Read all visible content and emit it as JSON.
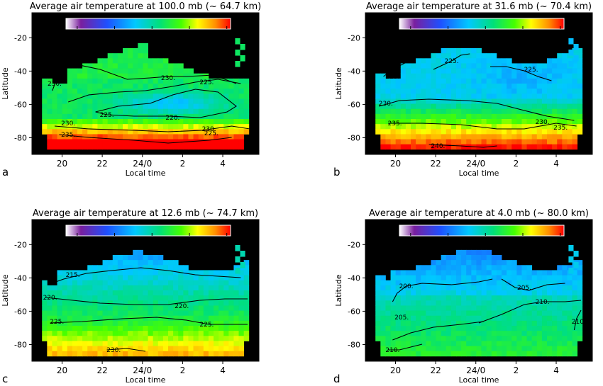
{
  "colors": {
    "background_plot": "#000000",
    "contour": "#000000",
    "colorbar": [
      "#ffffff",
      "#7a1f9e",
      "#1e50ff",
      "#00c8ff",
      "#00e07a",
      "#46ff00",
      "#ffff00",
      "#ff8c00",
      "#ff0000"
    ]
  },
  "chart_data": [
    {
      "panel_letter": "a",
      "type": "heatmap",
      "title": "Average air temperature at 100.0 mb (~ 64.7 km)",
      "xlabel": "Local time",
      "ylabel": "Latitude",
      "x_ticks": [
        "20",
        "22",
        "24/0",
        "2",
        "4"
      ],
      "y_ticks": [
        "-20",
        "-40",
        "-60",
        "-80"
      ],
      "xlim": [
        18.5,
        29.8
      ],
      "ylim": [
        -90,
        -5
      ],
      "colorbar_range": [
        207,
        251
      ],
      "colorbar_ticks": [
        "210",
        "220",
        "230",
        "240",
        "250"
      ],
      "contour_labels": [
        "230.",
        "230.",
        "225.",
        "225.",
        "220.",
        "230.",
        "225.",
        "235.",
        "230."
      ]
    },
    {
      "panel_letter": "b",
      "type": "heatmap",
      "title": "Average air temperature at  31.6 mb (~ 70.4 km)",
      "xlabel": "Local time",
      "ylabel": "Latitude",
      "x_ticks": [
        "20",
        "22",
        "24/0",
        "2",
        "4"
      ],
      "y_ticks": [
        "-20",
        "-40",
        "-60",
        "-80"
      ],
      "xlim": [
        18.5,
        29.8
      ],
      "ylim": [
        -90,
        -5
      ],
      "colorbar_range": [
        207,
        251
      ],
      "colorbar_ticks": [
        "210",
        "220",
        "230",
        "240",
        "250"
      ],
      "contour_labels": [
        "225.",
        "225.",
        "225.",
        "230.",
        "235.",
        "230.",
        "235.",
        "240."
      ]
    },
    {
      "panel_letter": "c",
      "type": "heatmap",
      "title": "Average air temperature at  12.6 mb (~ 74.7 km)",
      "xlabel": "Local time",
      "ylabel": "Latitude",
      "x_ticks": [
        "20",
        "22",
        "24/0",
        "2",
        "4"
      ],
      "y_ticks": [
        "-20",
        "-40",
        "-60",
        "-80"
      ],
      "xlim": [
        18.5,
        29.8
      ],
      "ylim": [
        -90,
        -5
      ],
      "colorbar_range": [
        197,
        241
      ],
      "colorbar_ticks": [
        "200",
        "210",
        "220",
        "230",
        "240"
      ],
      "contour_labels": [
        "215.",
        "220.",
        "220.",
        "225.",
        "225.",
        "230."
      ]
    },
    {
      "panel_letter": "d",
      "type": "heatmap",
      "title": "Average air temperature at   4.0 mb (~ 80.0 km)",
      "xlabel": "Local time",
      "ylabel": "Latitude",
      "x_ticks": [
        "20",
        "22",
        "24/0",
        "2",
        "4"
      ],
      "y_ticks": [
        "-20",
        "-40",
        "-60",
        "-80"
      ],
      "xlim": [
        18.5,
        29.8
      ],
      "ylim": [
        -90,
        -5
      ],
      "colorbar_range": [
        187,
        231
      ],
      "colorbar_ticks": [
        "190",
        "200",
        "210",
        "220",
        "230"
      ],
      "contour_labels": [
        "200.",
        "205.",
        "210.",
        "205.",
        "210.",
        "210."
      ]
    }
  ]
}
